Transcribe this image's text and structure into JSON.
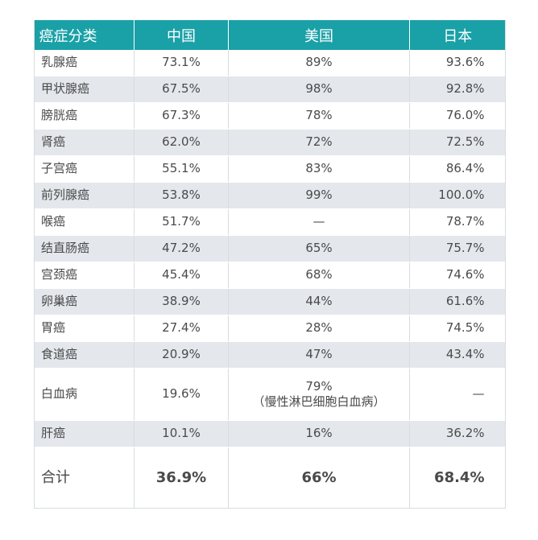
{
  "table": {
    "headers": [
      "癌症分类",
      "中国",
      "美国",
      "日本"
    ],
    "rows": [
      {
        "type": "乳腺癌",
        "china": "73.1%",
        "usa": "89%",
        "japan": "93.6%"
      },
      {
        "type": "甲状腺癌",
        "china": "67.5%",
        "usa": "98%",
        "japan": "92.8%"
      },
      {
        "type": "膀胱癌",
        "china": "67.3%",
        "usa": "78%",
        "japan": "76.0%"
      },
      {
        "type": "肾癌",
        "china": "62.0%",
        "usa": "72%",
        "japan": "72.5%"
      },
      {
        "type": "子宫癌",
        "china": "55.1%",
        "usa": "83%",
        "japan": "86.4%"
      },
      {
        "type": "前列腺癌",
        "china": "53.8%",
        "usa": "99%",
        "japan": "100.0%"
      },
      {
        "type": "喉癌",
        "china": "51.7%",
        "usa": "—",
        "japan": "78.7%"
      },
      {
        "type": "结直肠癌",
        "china": "47.2%",
        "usa": "65%",
        "japan": "75.7%"
      },
      {
        "type": "宫颈癌",
        "china": "45.4%",
        "usa": "68%",
        "japan": "74.6%"
      },
      {
        "type": "卵巢癌",
        "china": "38.9%",
        "usa": "44%",
        "japan": "61.6%"
      },
      {
        "type": "胃癌",
        "china": "27.4%",
        "usa": "28%",
        "japan": "74.5%"
      },
      {
        "type": "食道癌",
        "china": "20.9%",
        "usa": "47%",
        "japan": "43.4%"
      },
      {
        "type": "白血病",
        "china": "19.6%",
        "usa": "79%",
        "usa_note": "（慢性淋巴细胞白血病）",
        "japan": "—"
      },
      {
        "type": "肝癌",
        "china": "10.1%",
        "usa": "16%",
        "japan": "36.2%"
      }
    ],
    "total": {
      "label": "合计",
      "china": "36.9%",
      "usa": "66%",
      "japan": "68.4%"
    }
  },
  "colors": {
    "header_bg": "#1aa0a7",
    "alt_row_bg": "#e4e7ec",
    "text": "#4a4a4a"
  }
}
